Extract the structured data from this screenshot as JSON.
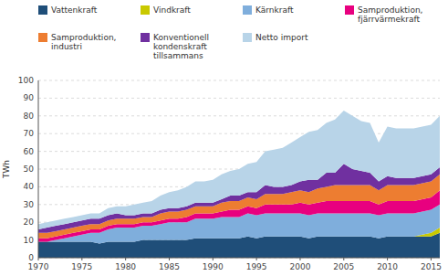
{
  "chart_data": {
    "type": "area",
    "stacked": true,
    "ylabel": "TWh",
    "x": [
      1970,
      1971,
      1972,
      1973,
      1974,
      1975,
      1976,
      1977,
      1978,
      1979,
      1980,
      1981,
      1982,
      1983,
      1984,
      1985,
      1986,
      1987,
      1988,
      1989,
      1990,
      1991,
      1992,
      1993,
      1994,
      1995,
      1996,
      1997,
      1998,
      1999,
      2000,
      2001,
      2002,
      2003,
      2004,
      2005,
      2006,
      2007,
      2008,
      2009,
      2010,
      2011,
      2012,
      2013,
      2014,
      2015,
      2016
    ],
    "series": [
      {
        "name": "Vattenkraft",
        "color": "#1F4E79",
        "values": [
          9,
          9,
          9,
          9,
          9,
          9,
          9,
          8,
          9,
          9,
          9,
          9,
          10,
          10,
          10,
          10,
          10,
          10,
          11,
          11,
          11,
          11,
          11,
          11,
          12,
          11,
          12,
          12,
          12,
          12,
          12,
          11,
          12,
          12,
          12,
          12,
          12,
          12,
          12,
          11,
          12,
          12,
          12,
          12,
          12,
          12,
          14
        ]
      },
      {
        "name": "Vindkraft",
        "color": "#C9C900",
        "values": [
          0,
          0,
          0,
          0,
          0,
          0,
          0,
          0,
          0,
          0,
          0,
          0,
          0,
          0,
          0,
          0,
          0,
          0,
          0,
          0,
          0,
          0,
          0,
          0,
          0,
          0,
          0,
          0,
          0,
          0,
          0,
          0,
          0,
          0,
          0,
          0,
          0,
          0,
          0,
          0,
          0,
          0,
          0,
          0,
          1,
          2,
          3
        ]
      },
      {
        "name": "Kärnkraft",
        "color": "#7FAEDC",
        "values": [
          0,
          0,
          1,
          2,
          3,
          4,
          5,
          6,
          7,
          8,
          8,
          8,
          8,
          8,
          9,
          10,
          10,
          10,
          11,
          11,
          11,
          12,
          12,
          12,
          13,
          13,
          13,
          13,
          13,
          13,
          13,
          13,
          13,
          13,
          13,
          13,
          13,
          13,
          13,
          13,
          13,
          13,
          13,
          13,
          13,
          13,
          13
        ]
      },
      {
        "name": "Samproduktion,\nfjärrvärmekraft",
        "color": "#E8007F",
        "values": [
          2,
          2,
          2,
          2,
          2,
          2,
          2,
          2,
          2,
          2,
          2,
          2,
          2,
          2,
          2,
          2,
          2,
          3,
          3,
          3,
          3,
          3,
          4,
          4,
          4,
          4,
          5,
          5,
          5,
          5,
          6,
          6,
          6,
          7,
          7,
          7,
          7,
          7,
          7,
          6,
          7,
          7,
          7,
          7,
          7,
          7,
          8
        ]
      },
      {
        "name": "Samproduktion,\nindustri",
        "color": "#ED7D31",
        "values": [
          3,
          3,
          3,
          3,
          3,
          3,
          3,
          3,
          3,
          3,
          3,
          3,
          3,
          3,
          4,
          4,
          4,
          4,
          4,
          4,
          4,
          5,
          5,
          5,
          5,
          5,
          6,
          6,
          6,
          7,
          7,
          7,
          8,
          8,
          9,
          9,
          9,
          9,
          9,
          8,
          9,
          9,
          9,
          9,
          9,
          9,
          9
        ]
      },
      {
        "name": "Konventionell\nkondenskraft\ntillsammans",
        "color": "#7030A0",
        "values": [
          2,
          3,
          3,
          3,
          3,
          3,
          3,
          3,
          3,
          3,
          2,
          2,
          2,
          2,
          2,
          2,
          2,
          2,
          2,
          2,
          2,
          2,
          3,
          3,
          3,
          4,
          5,
          4,
          4,
          4,
          5,
          7,
          5,
          8,
          7,
          12,
          9,
          8,
          7,
          5,
          5,
          4,
          4,
          4,
          4,
          4,
          4
        ]
      },
      {
        "name": "Netto import",
        "color": "#B8D4E8",
        "values": [
          3,
          3,
          3,
          3,
          3,
          3,
          3,
          3,
          4,
          4,
          5,
          6,
          6,
          7,
          8,
          9,
          10,
          11,
          12,
          12,
          13,
          14,
          14,
          15,
          16,
          17,
          19,
          21,
          22,
          24,
          25,
          27,
          28,
          28,
          30,
          30,
          30,
          28,
          28,
          22,
          28,
          28,
          28,
          28,
          28,
          28,
          29
        ]
      }
    ],
    "xlim": [
      1970,
      2016
    ],
    "ylim": [
      0,
      100
    ],
    "xticks": [
      1970,
      1975,
      1980,
      1985,
      1990,
      1995,
      2000,
      2005,
      2010,
      2015
    ],
    "yticks": [
      0,
      10,
      20,
      30,
      40,
      50,
      60,
      70,
      80,
      90,
      100
    ],
    "grid": true,
    "legend": "top"
  }
}
